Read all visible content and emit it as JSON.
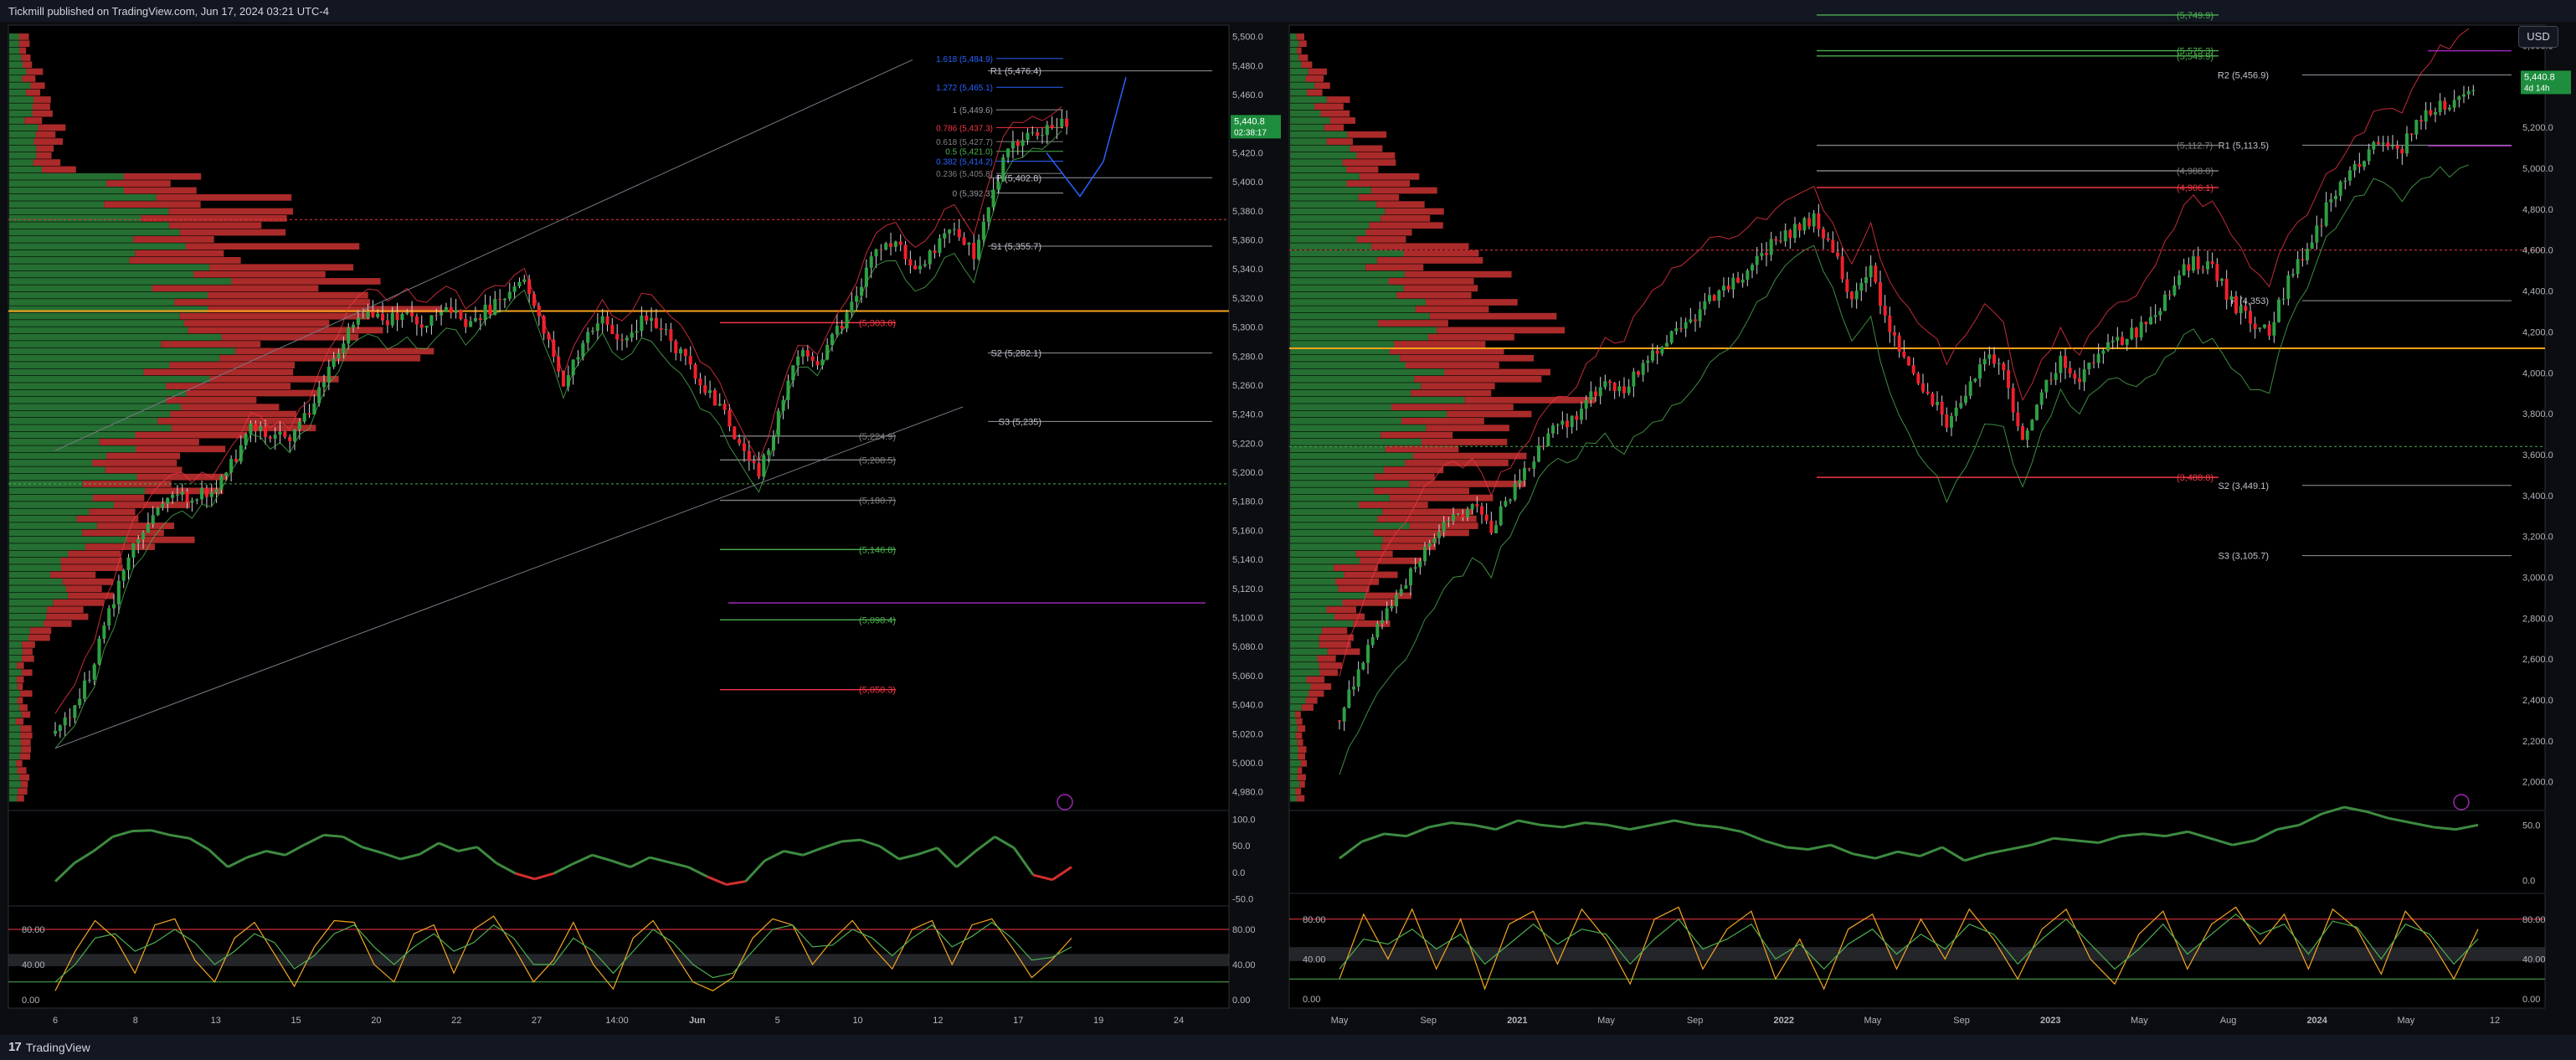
{
  "header": {
    "publisher": "Tickmill published on TradingView.com, Jun 17, 2024 03:21 UTC-4"
  },
  "footer": {
    "brand": "TradingView"
  },
  "currency_button": "USD",
  "chart_data": [
    {
      "type": "candlestick",
      "instrument": "",
      "price_axis": [
        "5,500.0",
        "5,480.0",
        "5,460.0",
        "5,440.0",
        "5,420.0",
        "5,400.0",
        "5,380.0",
        "5,360.0",
        "5,340.0",
        "5,320.0",
        "5,300.0",
        "5,280.0",
        "5,260.0",
        "5,240.0",
        "5,220.0",
        "5,200.0",
        "5,180.0",
        "5,160.0",
        "5,140.0",
        "5,120.0",
        "5,100.0",
        "5,080.0",
        "5,060.0",
        "5,040.0",
        "5,020.0",
        "5,000.0",
        "4,980.0"
      ],
      "ylim": [
        4970,
        5505
      ],
      "time_axis": [
        "6",
        "8",
        "13",
        "15",
        "20",
        "22",
        "27",
        "14:00",
        "Jun",
        "5",
        "10",
        "12",
        "17",
        "19",
        "24"
      ],
      "last_price": "5,440.8",
      "countdown": "02:38:17",
      "fib_levels": [
        {
          "label": "1.618 (5,484.9)",
          "price": 5484.9,
          "color": "#2962ff"
        },
        {
          "label": "1.272 (5,465.1)",
          "price": 5465.1,
          "color": "#2962ff"
        },
        {
          "label": "1 (5,449.6)",
          "price": 5449.6,
          "color": "#9598a1"
        },
        {
          "label": "0.786 (5,437.3)",
          "price": 5437.3,
          "color": "#f23645"
        },
        {
          "label": "0.618 (5,427.7)",
          "price": 5427.7,
          "color": "#808080"
        },
        {
          "label": "0.5 (5,421.0)",
          "price": 5421.0,
          "color": "#4caf50"
        },
        {
          "label": "0.382 (5,414.2)",
          "price": 5414.2,
          "color": "#2962ff"
        },
        {
          "label": "0.236 (5,405.8)",
          "price": 5405.8,
          "color": "#808080"
        },
        {
          "label": "0 (5,392.3)",
          "price": 5392.3,
          "color": "#9598a1"
        }
      ],
      "pivot_levels": [
        {
          "label": "R1 (5,476.4)",
          "price": 5476.4
        },
        {
          "label": "P (5,402.8)",
          "price": 5402.8
        },
        {
          "label": "S1 (5,355.7)",
          "price": 5355.7
        },
        {
          "label": "S2 (5,282.1)",
          "price": 5282.1
        },
        {
          "label": "S3 (5,235)",
          "price": 5235
        }
      ],
      "level_lines": [
        {
          "label": "(5,303.0)",
          "price": 5303.0,
          "color": "#f23645"
        },
        {
          "label": "(5,224.9)",
          "price": 5224.9,
          "color": "#808080"
        },
        {
          "label": "(5,208.5)",
          "price": 5208.5,
          "color": "#808080"
        },
        {
          "label": "(5,180.7)",
          "price": 5180.7,
          "color": "#808080"
        },
        {
          "label": "(5,146.8)",
          "price": 5146.8,
          "color": "#4caf50"
        },
        {
          "label": "(5,098.4)",
          "price": 5098.4,
          "color": "#4caf50"
        },
        {
          "label": "(5,050.3)",
          "price": 5050.3,
          "color": "#f23645"
        }
      ],
      "close": [
        5020,
        5038,
        5070,
        5112,
        5150,
        5172,
        5180,
        5184,
        5188,
        5205,
        5232,
        5228,
        5226,
        5242,
        5272,
        5300,
        5312,
        5306,
        5310,
        5300,
        5316,
        5300,
        5311,
        5320,
        5334,
        5296,
        5262,
        5290,
        5308,
        5292,
        5305,
        5302,
        5281,
        5262,
        5244,
        5222,
        5196,
        5240,
        5282,
        5272,
        5298,
        5320,
        5352,
        5362,
        5340,
        5354,
        5371,
        5348,
        5398,
        5426,
        5434,
        5439,
        5441
      ],
      "rsi_axis": [
        "100.0",
        "50.0",
        "0.0",
        "-50.0"
      ],
      "rsi": [
        22,
        45,
        60,
        78,
        85,
        86,
        80,
        76,
        62,
        40,
        52,
        60,
        55,
        68,
        80,
        78,
        65,
        58,
        50,
        56,
        70,
        60,
        65,
        45,
        32,
        25,
        32,
        44,
        55,
        48,
        40,
        52,
        46,
        40,
        28,
        18,
        22,
        48,
        60,
        55,
        64,
        72,
        74,
        66,
        50,
        56,
        64,
        40,
        60,
        78,
        64,
        30,
        24,
        40
      ],
      "stoch_axis": [
        "80.00",
        "40.00",
        "0.00"
      ],
      "stoch_k": [
        10,
        55,
        90,
        70,
        30,
        85,
        92,
        45,
        20,
        70,
        88,
        52,
        15,
        60,
        90,
        88,
        40,
        20,
        75,
        85,
        30,
        80,
        95,
        60,
        20,
        45,
        88,
        40,
        12,
        70,
        90,
        55,
        20,
        10,
        25,
        70,
        92,
        85,
        40,
        68,
        90,
        60,
        35,
        80,
        90,
        40,
        85,
        92,
        60,
        25,
        45,
        70
      ],
      "stoch_d": [
        20,
        40,
        70,
        75,
        55,
        65,
        80,
        65,
        40,
        55,
        75,
        65,
        35,
        50,
        75,
        85,
        60,
        40,
        60,
        75,
        55,
        65,
        85,
        70,
        40,
        40,
        70,
        55,
        30,
        55,
        80,
        65,
        40,
        25,
        30,
        55,
        80,
        85,
        60,
        62,
        80,
        70,
        50,
        70,
        85,
        60,
        72,
        88,
        70,
        45,
        48,
        60
      ]
    },
    {
      "type": "candlestick",
      "instrument": "",
      "price_axis": [
        "5,600.0",
        "5,400.0",
        "5,200.0",
        "5,000.0",
        "4,800.0",
        "4,600.0",
        "4,400.0",
        "4,200.0",
        "4,000.0",
        "3,800.0",
        "3,600.0",
        "3,400.0",
        "3,200.0",
        "3,000.0",
        "2,800.0",
        "2,600.0",
        "2,400.0",
        "2,200.0",
        "2,000.0"
      ],
      "ylim": [
        1880,
        5680
      ],
      "time_axis": [
        "May",
        "Sep",
        "2021",
        "May",
        "Sep",
        "2022",
        "May",
        "Sep",
        "2023",
        "May",
        "Aug",
        "2024",
        "May",
        "12"
      ],
      "last_price": "5,440.8",
      "countdown": "4d 14h",
      "pivot_levels": [
        {
          "label": "R2 (5,456.9)",
          "price": 5456.9
        },
        {
          "label": "R1 (5,113.5)",
          "price": 5113.5
        },
        {
          "label": "P (4,353)",
          "price": 4353
        },
        {
          "label": "S2 (3,449.1)",
          "price": 3449.1
        },
        {
          "label": "S3 (3,105.7)",
          "price": 3105.7
        }
      ],
      "level_lines": [
        {
          "label": "(5,749.9)",
          "price": 5749.9,
          "color": "#4caf50"
        },
        {
          "label": "(5,575.3)",
          "price": 5575.3,
          "color": "#4caf50"
        },
        {
          "label": "(5,549.9)",
          "price": 5549.9,
          "color": "#4caf50"
        },
        {
          "label": "(5,112.7)",
          "price": 5112.7,
          "color": "#808080"
        },
        {
          "label": "(4,988.0)",
          "price": 4988.0,
          "color": "#808080"
        },
        {
          "label": "(4,906.1)",
          "price": 4906.1,
          "color": "#f23645"
        },
        {
          "label": "(3,488.8)",
          "price": 3488.8,
          "color": "#f23645"
        }
      ],
      "close": [
        2300,
        2550,
        2800,
        2900,
        3050,
        3200,
        3300,
        3350,
        3250,
        3400,
        3550,
        3700,
        3750,
        3850,
        3950,
        3900,
        4050,
        4150,
        4200,
        4300,
        4400,
        4450,
        4550,
        4650,
        4700,
        4750,
        4600,
        4350,
        4500,
        4200,
        4050,
        3900,
        3750,
        3900,
        4100,
        4000,
        3650,
        3900,
        4050,
        3950,
        4100,
        4150,
        4200,
        4300,
        4450,
        4550,
        4500,
        4350,
        4250,
        4200,
        4450,
        4600,
        4800,
        4950,
        5050,
        5150,
        5100,
        5250,
        5300,
        5350,
        5440
      ],
      "rsi_axis": [
        "50.0",
        "0.0"
      ],
      "rsi": [
        40,
        55,
        62,
        60,
        68,
        72,
        70,
        66,
        74,
        70,
        68,
        72,
        70,
        66,
        70,
        74,
        70,
        68,
        64,
        56,
        50,
        48,
        52,
        44,
        40,
        46,
        42,
        50,
        38,
        44,
        48,
        52,
        58,
        56,
        54,
        60,
        62,
        60,
        64,
        58,
        52,
        56,
        66,
        70,
        80,
        86,
        82,
        76,
        72,
        68,
        66,
        70
      ],
      "stoch_axis": [
        "80.00",
        "40.00",
        "0.00"
      ],
      "stoch_k": [
        20,
        85,
        40,
        90,
        30,
        80,
        10,
        75,
        88,
        35,
        90,
        60,
        15,
        80,
        92,
        30,
        70,
        88,
        20,
        60,
        10,
        70,
        85,
        30,
        80,
        40,
        90,
        60,
        20,
        70,
        90,
        40,
        15,
        65,
        88,
        30,
        75,
        92,
        55,
        85,
        30,
        90,
        70,
        25,
        88,
        60,
        20,
        70
      ],
      "stoch_d": [
        30,
        60,
        55,
        70,
        50,
        65,
        35,
        55,
        75,
        55,
        70,
        65,
        35,
        60,
        80,
        50,
        60,
        75,
        40,
        55,
        30,
        55,
        70,
        45,
        65,
        50,
        75,
        65,
        35,
        60,
        80,
        55,
        30,
        50,
        75,
        45,
        65,
        85,
        65,
        75,
        45,
        78,
        72,
        40,
        75,
        65,
        35,
        60
      ]
    }
  ]
}
